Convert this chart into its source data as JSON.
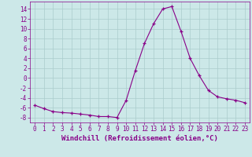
{
  "x": [
    0,
    1,
    2,
    3,
    4,
    5,
    6,
    7,
    8,
    9,
    10,
    11,
    12,
    13,
    14,
    15,
    16,
    17,
    18,
    19,
    20,
    21,
    22,
    23
  ],
  "y": [
    -5.5,
    -6.2,
    -6.8,
    -7.0,
    -7.1,
    -7.3,
    -7.5,
    -7.8,
    -7.8,
    -8.0,
    -4.5,
    1.5,
    7.0,
    11.0,
    14.0,
    14.5,
    9.5,
    4.0,
    0.5,
    -2.5,
    -3.8,
    -4.2,
    -4.5,
    -5.0
  ],
  "line_color": "#880088",
  "marker": "+",
  "marker_color": "#880088",
  "bg_color": "#cce8e8",
  "grid_color": "#aacccc",
  "xlabel": "Windchill (Refroidissement éolien,°C)",
  "ylabel": "",
  "title": "",
  "xlim_min": -0.5,
  "xlim_max": 23.5,
  "ylim_min": -9,
  "ylim_max": 15.5,
  "yticks": [
    -8,
    -6,
    -4,
    -2,
    0,
    2,
    4,
    6,
    8,
    10,
    12,
    14
  ],
  "xticks": [
    0,
    1,
    2,
    3,
    4,
    5,
    6,
    7,
    8,
    9,
    10,
    11,
    12,
    13,
    14,
    15,
    16,
    17,
    18,
    19,
    20,
    21,
    22,
    23
  ],
  "tick_fontsize": 5.5,
  "xlabel_fontsize": 6.5,
  "tick_color": "#880088",
  "axis_color": "#880088",
  "linewidth": 0.8,
  "markersize": 3.5,
  "markeredgewidth": 0.9
}
